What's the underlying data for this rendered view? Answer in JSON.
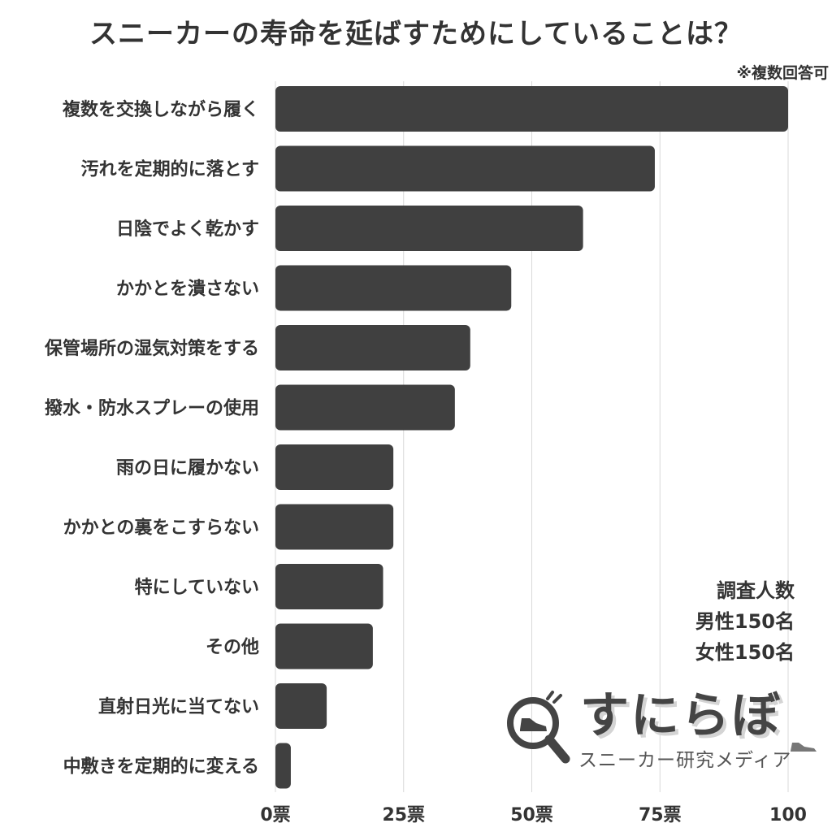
{
  "title": "スニーカーの寿命を延ばすためにしていることは？",
  "note": "※複数回答可",
  "survey": {
    "heading": "調査人数",
    "male": "男性150名",
    "female": "女性150名"
  },
  "logo": {
    "name": "すにらぼ",
    "tagline": "スニーカー研究メディア",
    "icon": "magnifier-sneaker-icon"
  },
  "colors": {
    "bar": "#404040",
    "grid": "#d9d9d9",
    "text": "#333333"
  },
  "chart_data": {
    "type": "bar",
    "orientation": "horizontal",
    "categories": [
      "複数を交換しながら履く",
      "汚れを定期的に落とす",
      "日陰でよく乾かす",
      "かかとを潰さない",
      "保管場所の湿気対策をする",
      "撥水・防水スプレーの使用",
      "雨の日に履かない",
      "かかとの裏をこすらない",
      "特にしていない",
      "その他",
      "直射日光に当てない",
      "中敷きを定期的に変える"
    ],
    "values": [
      100,
      74,
      60,
      46,
      38,
      35,
      23,
      23,
      21,
      19,
      10,
      3
    ],
    "xlim": [
      0,
      100
    ],
    "xticks": [
      0,
      25,
      50,
      75,
      100
    ],
    "xtick_labels": [
      "0票",
      "25票",
      "50票",
      "75票",
      "100"
    ],
    "grid": true
  }
}
